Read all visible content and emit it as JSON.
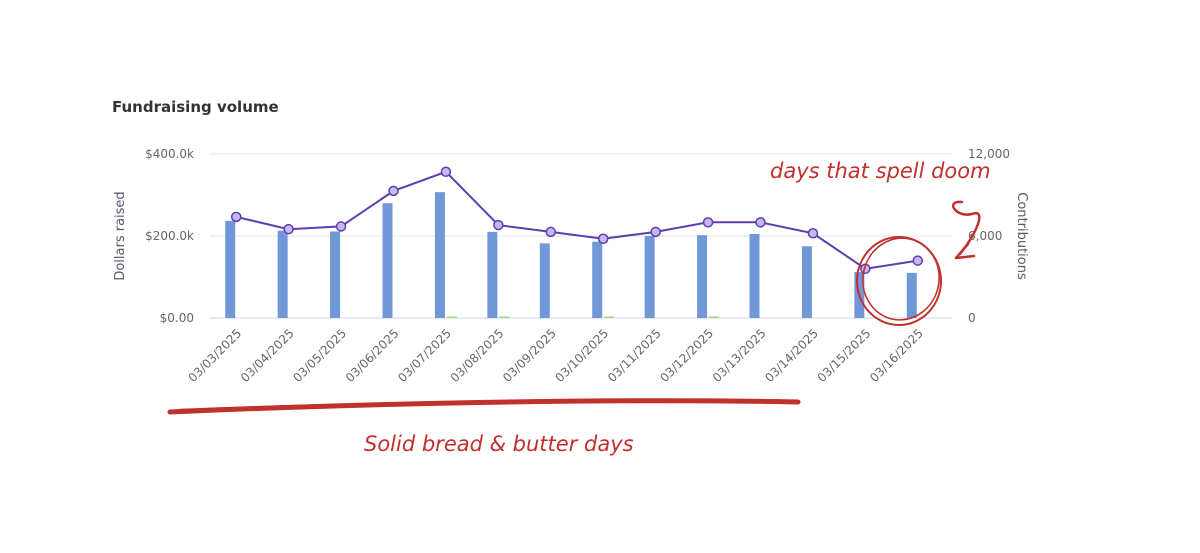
{
  "chart_data": {
    "type": "bar",
    "title": "Fundraising volume",
    "xlabel": "",
    "ylabel": "Dollars raised",
    "ylabel_right": "Contributions",
    "ylim": [
      0,
      400000
    ],
    "ylim_right": [
      0,
      12000
    ],
    "yticks": [
      "$0.00",
      "$200.0k",
      "$400.0k"
    ],
    "yticks_right": [
      "0",
      "6,000",
      "12,000"
    ],
    "categories": [
      "03/03/2025",
      "03/04/2025",
      "03/05/2025",
      "03/06/2025",
      "03/07/2025",
      "03/08/2025",
      "03/09/2025",
      "03/10/2025",
      "03/11/2025",
      "03/12/2025",
      "03/13/2025",
      "03/14/2025",
      "03/15/2025",
      "03/16/2025"
    ],
    "series": [
      {
        "name": "",
        "type": "bar",
        "axis": "left",
        "color": "#7097d8",
        "values": [
          237000,
          213000,
          211000,
          280000,
          307000,
          210000,
          182000,
          186000,
          200000,
          202000,
          205000,
          175000,
          112000,
          110000
        ]
      },
      {
        "name": "",
        "type": "bar",
        "axis": "left",
        "color": "#a4d68a",
        "values": [
          0,
          0,
          0,
          0,
          800,
          800,
          0,
          600,
          0,
          600,
          0,
          0,
          0,
          0
        ]
      },
      {
        "name": "",
        "type": "line",
        "axis": "right",
        "color": "#5c3eb0",
        "marker_fill": "#c6b7ee",
        "values": [
          7400,
          6500,
          6700,
          9300,
          10700,
          6800,
          6300,
          5800,
          6300,
          7000,
          7000,
          6200,
          3600,
          4200
        ]
      }
    ],
    "grid": true,
    "legend": "none"
  },
  "annotations": {
    "top_right": "days that spell doom",
    "bottom": "Solid bread & butter days",
    "color": "#c0302c"
  }
}
